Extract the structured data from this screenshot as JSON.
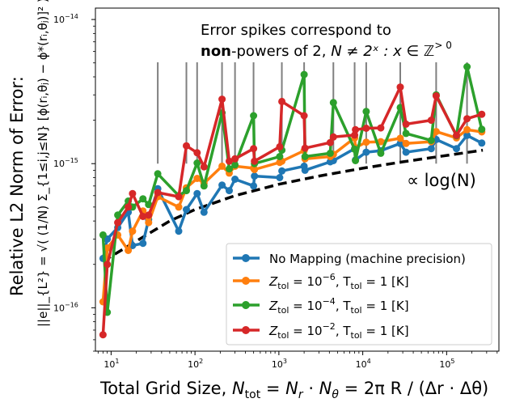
{
  "chart_data": {
    "type": "line",
    "xscale": "log",
    "yscale": "log",
    "xlim": [
      6.5,
      420000
    ],
    "ylim": [
      5e-17,
      1.2e-14
    ],
    "x_ticks": [
      {
        "value": 10,
        "base": "10",
        "exp": "1"
      },
      {
        "value": 100,
        "base": "10",
        "exp": "2"
      },
      {
        "value": 1000,
        "base": "10",
        "exp": "3"
      },
      {
        "value": 10000,
        "base": "10",
        "exp": "4"
      },
      {
        "value": 100000,
        "base": "10",
        "exp": "5"
      }
    ],
    "y_ticks": [
      {
        "value": 1e-16,
        "base": "10",
        "exp": "−16"
      },
      {
        "value": 1e-15,
        "base": "10",
        "exp": "−15"
      },
      {
        "value": 1e-14,
        "base": "10",
        "exp": "−14"
      }
    ],
    "xlabel": {
      "prefix": "Total Grid Size, ",
      "suffix": " = 2π R / (Δr · Δθ)"
    },
    "ylabel": {
      "title": "Relative L2 Norm of Error:",
      "formula": "||e||_{L²} = √( (1/N) Σ_{1≤i,j≤N} [ϕ(rᵢ,θⱼ) − ϕ*(rᵢ,θⱼ)]² )"
    },
    "annotation": {
      "line1": "Error spikes correspond to",
      "line2_bold": "non",
      "line2_rest": "-powers of 2, ",
      "line2_math": "N ≠ 2ˣ : x ∈ ℤ",
      "line2_sup": "> 0",
      "spike_x": [
        36,
        79,
        106,
        210,
        300,
        499,
        1085,
        2000,
        4464,
        8000,
        11000,
        28000,
        75000,
        175000
      ]
    },
    "log_label": "∝ log(N)",
    "reference": {
      "name": "∝ log(N)",
      "style": "dashed",
      "color": "#000000",
      "x": [
        8,
        20,
        50,
        100,
        300,
        1000,
        3000,
        10000,
        30000,
        100000,
        270000
      ],
      "y": [
        2.1e-16,
        2.9e-16,
        4e-16,
        4.8e-16,
        6e-16,
        7.2e-16,
        8.2e-16,
        9.3e-16,
        1.03e-15,
        1.14e-15,
        1.24e-15
      ]
    },
    "legend": {
      "position": "lower right",
      "entries": [
        {
          "label": "No Mapping (machine precision)",
          "color": "#1f77b4"
        },
        {
          "base": "Z",
          "sub": "tol",
          "rest": " = 10",
          "exp": "−6",
          "tail": ", T",
          "sub2": "tol",
          "end": " = 1 [K]",
          "color": "#ff7f0e"
        },
        {
          "base": "Z",
          "sub": "tol",
          "rest": " = 10",
          "exp": "−4",
          "tail": ", T",
          "sub2": "tol",
          "end": " = 1 [K]",
          "color": "#2ca02c"
        },
        {
          "base": "Z",
          "sub": "tol",
          "rest": " = 10",
          "exp": "−2",
          "tail": ", T",
          "sub2": "tol",
          "end": " = 1 [K]",
          "color": "#d62728"
        }
      ]
    },
    "x": [
      8,
      9,
      12,
      16,
      18,
      24,
      28,
      36,
      64,
      79,
      106,
      128,
      210,
      256,
      300,
      499,
      512,
      1024,
      1085,
      2000,
      2048,
      4096,
      4464,
      8000,
      8192,
      11000,
      16384,
      28000,
      32768,
      65536,
      75000,
      131072,
      175000,
      262144
    ],
    "series": [
      {
        "name": "No Mapping (machine precision)",
        "color": "#1f77b4",
        "values": [
          2.2e-16,
          3e-16,
          3.6e-16,
          4.6e-16,
          2.7e-16,
          2.8e-16,
          4.1e-16,
          6.7e-16,
          3.4e-16,
          4.8e-16,
          6.2e-16,
          4.6e-16,
          7.1e-16,
          6.5e-16,
          7.8e-16,
          7e-16,
          8.2e-16,
          8e-16,
          8.9e-16,
          9.6e-16,
          9e-16,
          1.03e-15,
          1.05e-15,
          1.27e-15,
          1.06e-15,
          1.2e-15,
          1.23e-15,
          1.38e-15,
          1.2e-15,
          1.27e-15,
          1.47e-15,
          1.27e-15,
          1.57e-15,
          1.39e-15
        ]
      },
      {
        "name": "Z_tol = 10^-6, T_tol = 1 [K]",
        "color": "#ff7f0e",
        "values": [
          1.1e-16,
          2.6e-16,
          3.2e-16,
          2.5e-16,
          3.4e-16,
          4.7e-16,
          3.9e-16,
          5.9e-16,
          5e-16,
          6.8e-16,
          7.9e-16,
          7.3e-16,
          9.6e-16,
          8.6e-16,
          9.6e-16,
          9.3e-16,
          9.1e-16,
          1.02e-15,
          1.04e-15,
          1.23e-15,
          1.08e-15,
          1.12e-15,
          1.16e-15,
          1.51e-15,
          1.29e-15,
          1.41e-15,
          1.42e-15,
          1.5e-15,
          1.38e-15,
          1.42e-15,
          1.67e-15,
          1.51e-15,
          1.72e-15,
          1.66e-15
        ]
      },
      {
        "name": "Z_tol = 10^-4, T_tol = 1 [K]",
        "color": "#2ca02c",
        "values": [
          3.2e-16,
          9.3e-17,
          4.4e-16,
          5.5e-16,
          5e-16,
          5.7e-16,
          5.2e-16,
          8.5e-16,
          6e-16,
          6.5e-16,
          1.01e-15,
          7e-16,
          2.25e-15,
          9.2e-16,
          9.8e-16,
          2.15e-15,
          1e-15,
          1.12e-15,
          1.24e-15,
          4.15e-15,
          1.12e-15,
          1.18e-15,
          2.65e-15,
          1.26e-15,
          1.05e-15,
          2.3e-15,
          1.18e-15,
          2.45e-15,
          1.62e-15,
          1.45e-15,
          3e-15,
          1.56e-15,
          4.7e-15,
          1.73e-15
        ]
      },
      {
        "name": "Z_tol = 10^-2, T_tol = 1 [K]",
        "color": "#d62728",
        "values": [
          6.5e-17,
          2e-16,
          3.9e-16,
          5e-16,
          6.2e-16,
          4.3e-16,
          4.4e-16,
          6.3e-16,
          5.9e-16,
          1.33e-15,
          1.19e-15,
          9.5e-16,
          2.8e-15,
          1.04e-15,
          1.08e-15,
          1.27e-15,
          1.04e-15,
          1.31e-15,
          2.7e-15,
          2.15e-15,
          1.28e-15,
          1.4e-15,
          1.53e-15,
          1.58e-15,
          1.72e-15,
          1.76e-15,
          1.77e-15,
          3.4e-15,
          1.88e-15,
          2e-15,
          2.95e-15,
          1.57e-15,
          2.05e-15,
          2.2e-15
        ]
      }
    ]
  }
}
